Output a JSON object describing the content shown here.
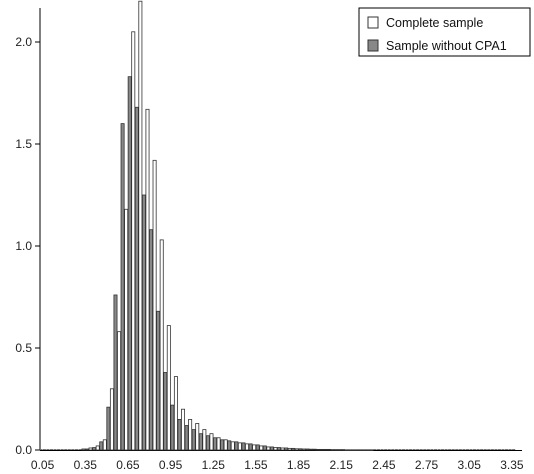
{
  "chart_data": {
    "type": "bar",
    "title": "",
    "xlabel": "",
    "ylabel": "",
    "ylim": [
      0,
      2.2
    ],
    "xlim": [
      0,
      3.4
    ],
    "bin_width": 0.05,
    "yticks": [
      "0.0",
      "0.5",
      "1.0",
      "1.5",
      "2.0"
    ],
    "ytick_values": [
      0,
      0.5,
      1.0,
      1.5,
      2.0
    ],
    "xticks": [
      "0.05",
      "0.35",
      "0.65",
      "0.95",
      "1.25",
      "1.55",
      "1.85",
      "2.15",
      "2.45",
      "2.75",
      "3.05",
      "3.35"
    ],
    "xtick_values": [
      0.05,
      0.35,
      0.65,
      0.95,
      1.25,
      1.55,
      1.85,
      2.15,
      2.45,
      2.75,
      3.05,
      3.35
    ],
    "legend_position": "top-right",
    "x": [
      0.05,
      0.1,
      0.15,
      0.2,
      0.25,
      0.3,
      0.35,
      0.4,
      0.45,
      0.5,
      0.55,
      0.6,
      0.65,
      0.7,
      0.75,
      0.8,
      0.85,
      0.9,
      0.95,
      1.0,
      1.05,
      1.1,
      1.15,
      1.2,
      1.25,
      1.3,
      1.35,
      1.4,
      1.45,
      1.5,
      1.55,
      1.6,
      1.65,
      1.7,
      1.75,
      1.8,
      1.85,
      1.9,
      1.95,
      2.0,
      2.05,
      2.1,
      2.15,
      2.2,
      2.25,
      2.3,
      2.35,
      2.4,
      2.45,
      2.5,
      2.55,
      2.6,
      2.65,
      2.7,
      2.75,
      2.8,
      2.85,
      2.9,
      2.95,
      3.0,
      3.05,
      3.1,
      3.15,
      3.2,
      3.25,
      3.3,
      3.35
    ],
    "series": [
      {
        "name": "Complete sample",
        "color": "#ffffff",
        "values": [
          0.0,
          0.0,
          0.0,
          0.0,
          0.0,
          0.0,
          0.005,
          0.01,
          0.02,
          0.05,
          0.3,
          0.58,
          1.18,
          2.05,
          2.2,
          1.67,
          1.42,
          1.03,
          0.61,
          0.36,
          0.2,
          0.15,
          0.13,
          0.1,
          0.08,
          0.06,
          0.05,
          0.04,
          0.035,
          0.03,
          0.025,
          0.02,
          0.015,
          0.012,
          0.01,
          0.008,
          0.006,
          0.005,
          0.004,
          0.003,
          0.003,
          0.002,
          0.002,
          0.001,
          0.001,
          0.001,
          0.001,
          0.0,
          0.0,
          0.0,
          0.0,
          0.0,
          0.0,
          0.0,
          0.0,
          0.0,
          0.0,
          0.0,
          0.0,
          0.0,
          0.0,
          0.0,
          0.0,
          0.0,
          0.0,
          0.0,
          0.0
        ]
      },
      {
        "name": "Sample without CPA1",
        "color": "#888888",
        "values": [
          0.0,
          0.0,
          0.0,
          0.0,
          0.0,
          0.0,
          0.005,
          0.012,
          0.04,
          0.21,
          0.76,
          1.6,
          1.83,
          1.68,
          1.25,
          1.08,
          0.68,
          0.38,
          0.22,
          0.15,
          0.12,
          0.1,
          0.08,
          0.07,
          0.06,
          0.05,
          0.045,
          0.04,
          0.035,
          0.03,
          0.025,
          0.02,
          0.015,
          0.012,
          0.01,
          0.008,
          0.006,
          0.005,
          0.004,
          0.003,
          0.003,
          0.002,
          0.002,
          0.001,
          0.001,
          0.001,
          0.001,
          0.0,
          0.0,
          0.0,
          0.0,
          0.0,
          0.0,
          0.0,
          0.0,
          0.0,
          0.0,
          0.0,
          0.0,
          0.0,
          0.0,
          0.0,
          0.0,
          0.0,
          0.0,
          0.0,
          0.0
        ]
      }
    ],
    "grid": false
  }
}
